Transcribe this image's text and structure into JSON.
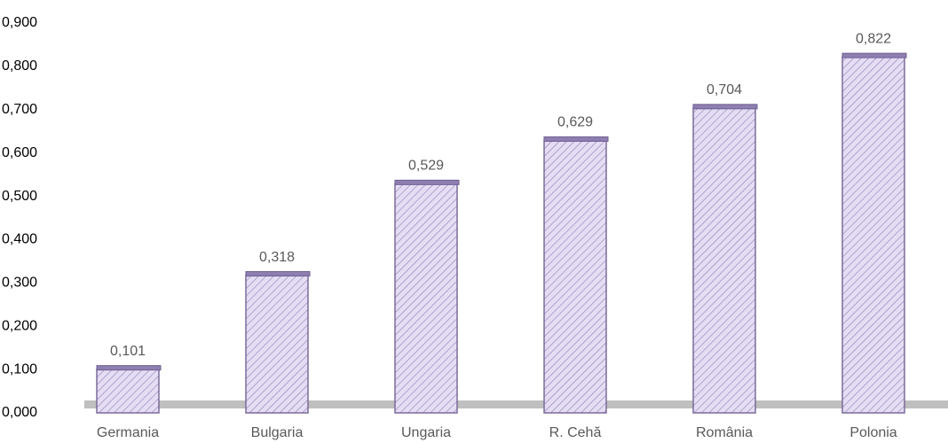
{
  "chart_data": {
    "type": "bar",
    "categories": [
      "Germania",
      "Bulgaria",
      "Ungaria",
      "R. Cehă",
      "România",
      "Polonia"
    ],
    "values": [
      0.101,
      0.318,
      0.529,
      0.629,
      0.704,
      0.822
    ],
    "value_labels": [
      "0,101",
      "0,318",
      "0,529",
      "0,629",
      "0,704",
      "0,822"
    ],
    "color": "#d9d0ef",
    "ylim": [
      0,
      0.9
    ],
    "yticks": [
      {
        "value": 0,
        "label": "0,000"
      },
      {
        "value": 0.1,
        "label": "0,100"
      },
      {
        "value": 0.2,
        "label": "0,200"
      },
      {
        "value": 0.3,
        "label": "0,300"
      },
      {
        "value": 0.4,
        "label": "0,400"
      },
      {
        "value": 0.5,
        "label": "0,500"
      },
      {
        "value": 0.6,
        "label": "0,600"
      },
      {
        "value": 0.7,
        "label": "0,700"
      },
      {
        "value": 0.8,
        "label": "0,800"
      },
      {
        "value": 0.9,
        "label": "0,900"
      }
    ],
    "grid": false
  }
}
